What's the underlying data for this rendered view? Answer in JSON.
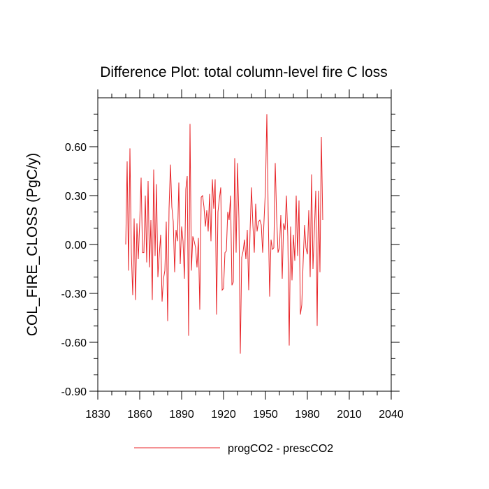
{
  "chart_data": {
    "type": "line",
    "title": "Difference Plot: total column-level fire C loss",
    "xlabel": "",
    "ylabel": "COL_FIRE_CLOSS  (PgC/y)",
    "xlim": [
      1830,
      2040
    ],
    "ylim": [
      -0.9,
      0.9
    ],
    "xticks": [
      1830,
      1860,
      1890,
      1920,
      1950,
      1980,
      2010,
      2040
    ],
    "xtick_labels": [
      "1830",
      "1860",
      "1890",
      "1920",
      "1950",
      "1980",
      "2010",
      "2040"
    ],
    "yticks": [
      -0.9,
      -0.6,
      -0.3,
      0.0,
      0.3,
      0.6
    ],
    "ytick_labels": [
      "-0.90",
      "-0.60",
      "-0.30",
      "0.00",
      "0.30",
      "0.60"
    ],
    "grid": false,
    "legend_position": "bottom-center",
    "series": [
      {
        "name": "progCO2 - prescCO2",
        "color": "#e8262a",
        "x_start": 1850,
        "x_step": 1,
        "values": [
          0.0,
          0.51,
          -0.16,
          0.59,
          -0.05,
          -0.31,
          0.16,
          -0.34,
          0.13,
          -0.09,
          0.14,
          0.41,
          -0.05,
          -0.05,
          0.3,
          -0.11,
          0.39,
          -0.14,
          0.15,
          -0.34,
          0.46,
          -0.07,
          0.37,
          -0.2,
          -0.06,
          0.06,
          -0.35,
          -0.21,
          -0.16,
          0.14,
          -0.47,
          0.22,
          0.49,
          0.23,
          0.14,
          -0.17,
          0.09,
          0.02,
          0.38,
          -0.12,
          0.11,
          0.02,
          -0.21,
          0.34,
          0.42,
          -0.56,
          0.74,
          -0.16,
          0.05,
          0.02,
          -0.02,
          -0.14,
          0.04,
          -0.4,
          0.29,
          0.3,
          0.23,
          0.11,
          0.21,
          0.08,
          0.31,
          0.02,
          0.4,
          0.22,
          0.4,
          -0.43,
          0.2,
          0.28,
          0.35,
          -0.28,
          -0.27,
          -0.05,
          -0.04,
          0.2,
          0.15,
          0.3,
          -0.25,
          -0.23,
          0.53,
          -0.05,
          0.5,
          0.16,
          -0.67,
          -0.08,
          -0.04,
          0.03,
          -0.09,
          0.09,
          -0.28,
          0.09,
          0.35,
          0.12,
          -0.05,
          0.25,
          0.08,
          0.14,
          0.15,
          0.12,
          -0.05,
          0.15,
          0.34,
          0.8,
          0.18,
          -0.32,
          0.03,
          -0.03,
          -0.02,
          0.5,
          0.17,
          -0.05,
          -0.02,
          0.18,
          -0.21,
          0.13,
          0.09,
          0.3,
          0.05,
          -0.62,
          0.11,
          -0.22,
          0.06,
          -0.1,
          0.3,
          -0.07,
          0.27,
          -0.43,
          -0.37,
          -0.1,
          0.12,
          -0.02,
          -0.06,
          0.21,
          -0.2,
          0.43,
          -0.15,
          0.08,
          0.33,
          -0.5,
          0.33,
          -0.17,
          0.66,
          0.15
        ]
      }
    ]
  }
}
